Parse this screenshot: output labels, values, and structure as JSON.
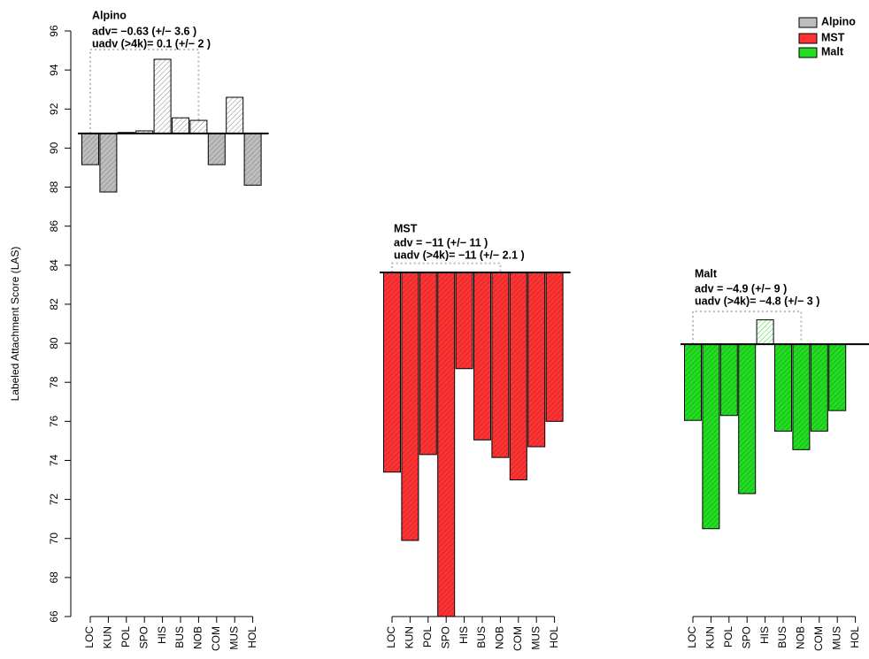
{
  "chart_data": {
    "type": "bar",
    "ylabel": "Labeled Attachment Score (LAS)",
    "ylim": [
      66,
      96
    ],
    "yticks": [
      66,
      68,
      70,
      72,
      74,
      76,
      78,
      80,
      82,
      84,
      86,
      88,
      90,
      92,
      94,
      96
    ],
    "categories": [
      "LOC",
      "KUN",
      "POL",
      "SPO",
      "HIS",
      "BUS",
      "NOB",
      "COM",
      "MUS",
      "HOL"
    ],
    "legend": "top-right",
    "series": [
      {
        "name": "Alpino",
        "color": "#bebebe",
        "baseline": 90.75,
        "box_top": 95.05,
        "annotation": [
          "Alpino",
          "adv= −0.63 (+/− 3.6 )",
          "uadv (>4k)= 0.1 (+/− 2 )"
        ],
        "values": [
          89.15,
          87.75,
          90.8,
          90.88,
          94.55,
          91.55,
          91.42,
          89.15,
          92.6,
          88.1
        ]
      },
      {
        "name": "MST",
        "color": "#ff3333",
        "baseline": 83.63,
        "box_top": 84.1,
        "annotation": [
          "MST",
          "adv = −11 (+/− 11 )",
          "uadv (>4k)= −11 (+/− 2.1 )"
        ],
        "values": [
          73.4,
          69.9,
          74.3,
          65.8,
          78.7,
          75.05,
          74.15,
          73.0,
          74.7,
          76.0
        ]
      },
      {
        "name": "Malt",
        "color": "#22dd22",
        "baseline": 79.95,
        "box_top": 81.63,
        "annotation": [
          "Malt",
          "adv = −4.9 (+/− 9 )",
          "uadv (>4k)= −4.8 (+/− 3 )"
        ],
        "values": [
          76.05,
          70.5,
          76.3,
          72.3,
          81.2,
          75.5,
          74.55,
          75.5,
          76.55,
          79.95
        ]
      }
    ]
  }
}
